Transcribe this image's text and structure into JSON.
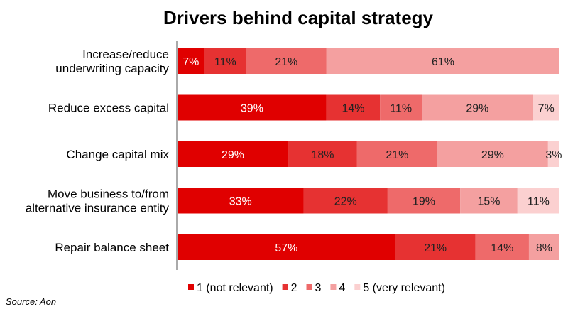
{
  "chart_data": {
    "type": "bar",
    "orientation": "horizontal",
    "stacked": true,
    "title": "Drivers behind capital strategy",
    "categories": [
      [
        "Increase/reduce",
        "underwriting capacity"
      ],
      [
        "Reduce excess capital"
      ],
      [
        "Change capital mix"
      ],
      [
        "Move business to/from",
        "alternative insurance entity"
      ],
      [
        "Repair balance sheet"
      ]
    ],
    "series": [
      {
        "name": "1 (not relevant)",
        "color": "#e00000",
        "label_color": "#ffffff",
        "values": [
          7,
          39,
          29,
          33,
          57
        ]
      },
      {
        "name": "2",
        "color": "#e63232",
        "label_color": "#222222",
        "values": [
          11,
          14,
          18,
          22,
          21
        ]
      },
      {
        "name": "3",
        "color": "#ee6a6a",
        "label_color": "#222222",
        "values": [
          21,
          11,
          21,
          19,
          14
        ]
      },
      {
        "name": "4",
        "color": "#f4a0a0",
        "label_color": "#222222",
        "values": [
          61,
          29,
          29,
          15,
          8
        ]
      },
      {
        "name": "5 (very relevant)",
        "color": "#fbd0d0",
        "label_color": "#222222",
        "values": [
          0,
          7,
          3,
          11,
          0
        ]
      }
    ],
    "value_suffix": "%",
    "xlim": [
      0,
      100
    ],
    "legend_position": "bottom",
    "grid": false,
    "source": "Source: Aon"
  }
}
